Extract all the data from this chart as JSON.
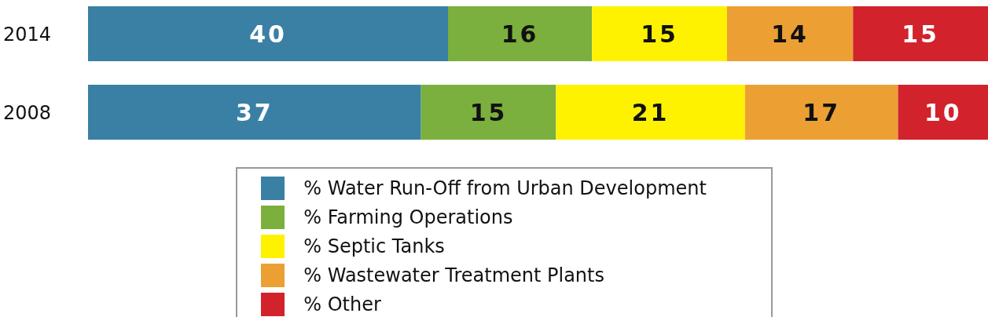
{
  "chart_data": {
    "type": "bar",
    "orientation": "horizontal",
    "stacked": true,
    "data_labels": true,
    "legend": "bottom",
    "grid": false,
    "tick_labels": "y",
    "categories": [
      "2014",
      "2008"
    ],
    "series": [
      {
        "name": "% Water Run-Off from Urban Development",
        "color": "#3a80a4",
        "values": [
          40,
          37
        ]
      },
      {
        "name": "% Farming Operations",
        "color": "#7baf3e",
        "values": [
          16,
          15
        ]
      },
      {
        "name": "% Septic Tanks",
        "color": "#fff200",
        "values": [
          15,
          21
        ]
      },
      {
        "name": "% Wastewater Treatment Plants",
        "color": "#eca033",
        "values": [
          14,
          17
        ]
      },
      {
        "name": "% Other",
        "color": "#d2232c",
        "values": [
          15,
          10
        ]
      }
    ]
  }
}
